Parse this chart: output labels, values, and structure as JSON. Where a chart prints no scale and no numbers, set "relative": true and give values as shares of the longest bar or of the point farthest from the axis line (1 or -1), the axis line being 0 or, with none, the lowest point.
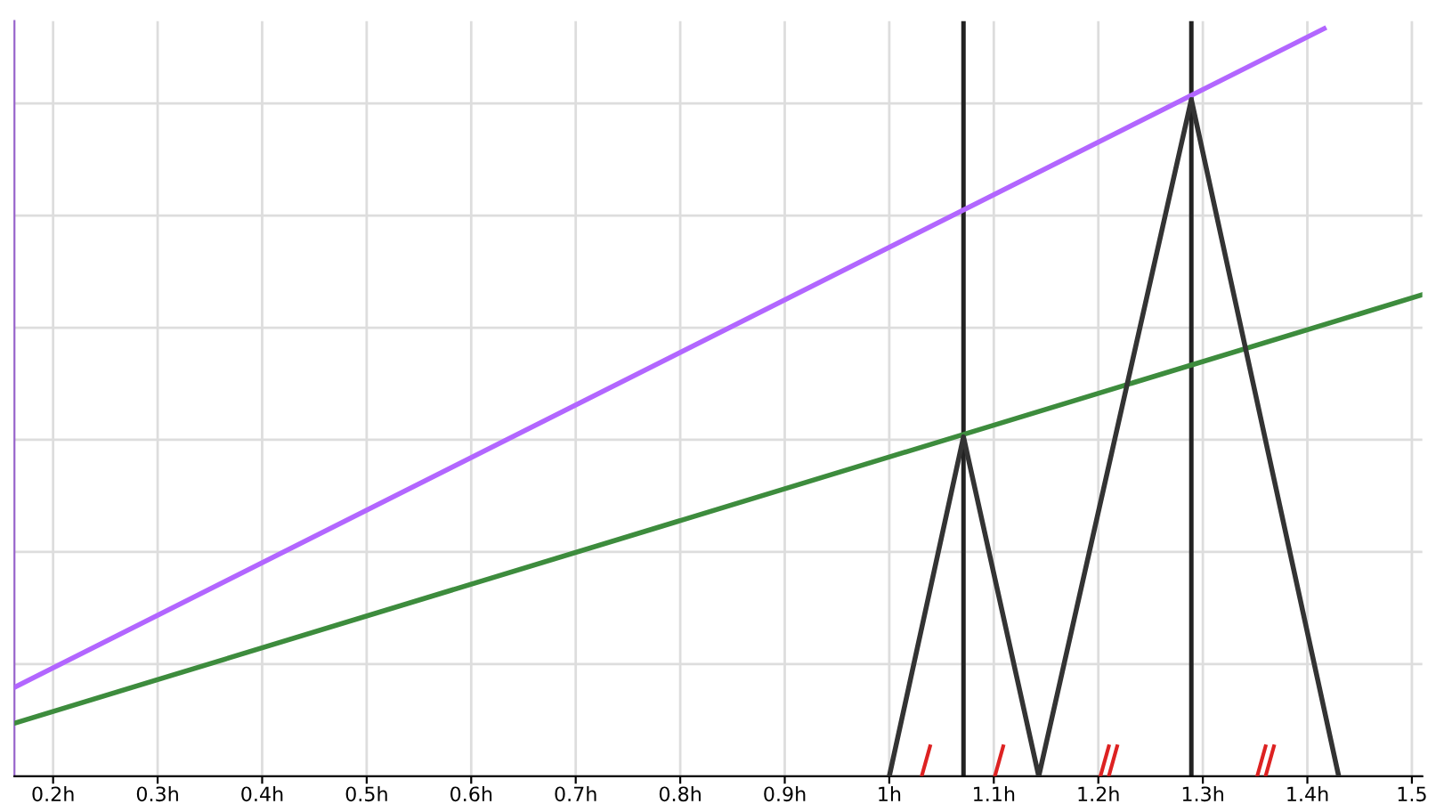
{
  "chart_data": {
    "type": "line",
    "relative": true,
    "grid": true,
    "marker": "none",
    "line_style": "solid",
    "xlim": [
      0.163,
      1.51
    ],
    "xticks": [
      {
        "value": 0.2,
        "label": "0.2h"
      },
      {
        "value": 0.3,
        "label": "0.3h"
      },
      {
        "value": 0.4,
        "label": "0.4h"
      },
      {
        "value": 0.5,
        "label": "0.5h"
      },
      {
        "value": 0.6,
        "label": "0.6h"
      },
      {
        "value": 0.7,
        "label": "0.7h"
      },
      {
        "value": 0.8,
        "label": "0.8h"
      },
      {
        "value": 0.9,
        "label": "0.9h"
      },
      {
        "value": 1.0,
        "label": "1h"
      },
      {
        "value": 1.1,
        "label": "1.1h"
      },
      {
        "value": 1.2,
        "label": "1.2h"
      },
      {
        "value": 1.3,
        "label": "1.3h"
      },
      {
        "value": 1.4,
        "label": "1.4h"
      },
      {
        "value": 1.5,
        "label": "1.5"
      }
    ],
    "series": [
      {
        "color": "#b266ff",
        "x": [
          0.163,
          1.416
        ],
        "values": [
          0.119,
          1.0
        ]
      },
      {
        "color": "#3d8c3d",
        "x": [
          0.163,
          1.51
        ],
        "values": [
          0.071,
          0.644
        ]
      },
      {
        "color": "#333333",
        "x": [
          1.0,
          1.071,
          1.143,
          1.289,
          1.43
        ],
        "values": [
          0,
          0.454,
          0,
          0.905,
          0
        ]
      }
    ],
    "ref_lines": [
      {
        "axis": "x",
        "value": 1.071,
        "color": "#222222"
      },
      {
        "axis": "x",
        "value": 1.289,
        "color": "#222222"
      }
    ]
  }
}
